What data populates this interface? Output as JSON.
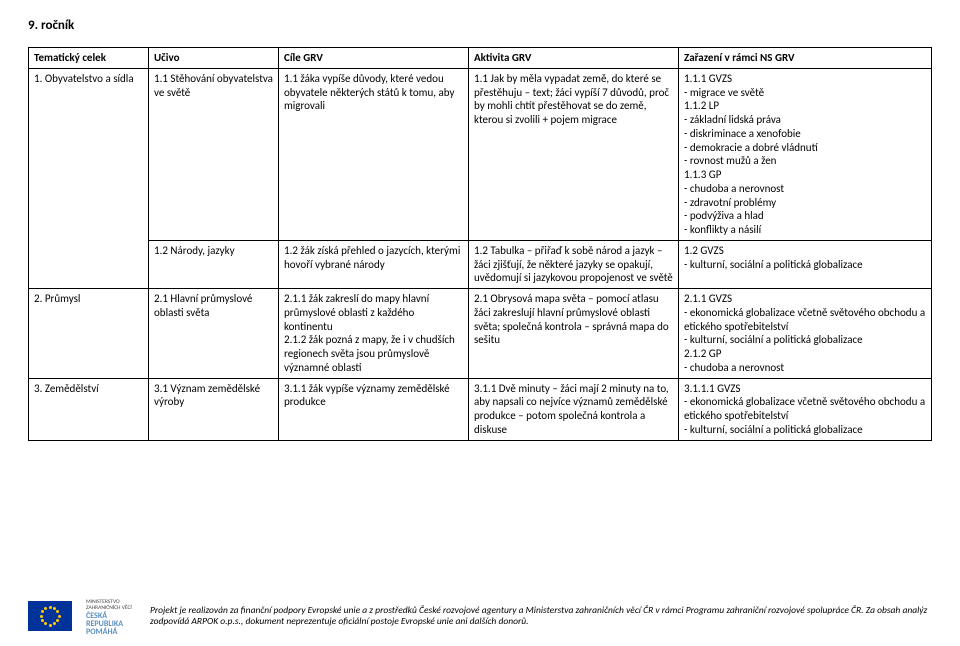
{
  "heading": "9. ročník",
  "columns": [
    "Tematický celek",
    "Učivo",
    "Cíle GRV",
    "Aktivita GRV",
    "Zařazení v rámci NS GRV"
  ],
  "rows": [
    {
      "c1": "1. Obyvatelstvo a sídla",
      "c2": "1.1 Stěhování obyvatelstva ve světě",
      "c3": "1.1 žáka vypíše důvody, které vedou obyvatele některých států k tomu, aby migrovali",
      "c4": "1.1 Jak by měla vypadat země, do které se přestěhuju – text; žáci vypíší 7 důvodů, proč by mohli chtít přestěhovat se do země, kterou si zvolili + pojem migrace",
      "c5": "1.1.1 GVZS\n- migrace ve světě\n1.1.2 LP\n- základní lidská práva\n- diskriminace a xenofobie\n- demokracie a dobré vládnutí\n- rovnost mužů a žen\n1.1.3 GP\n- chudoba a nerovnost\n- zdravotní problémy\n- podvýživa a hlad\n- konflikty a násilí"
    },
    {
      "c1": "",
      "c2": "1.2 Národy, jazyky",
      "c3": "1.2 žák získá přehled o jazycích, kterými hovoří vybrané národy",
      "c4": "1.2 Tabulka – přiřaď k sobě národ a jazyk – žáci zjišťují, že některé jazyky se opakují, uvědomují si jazykovou propojenost ve světě",
      "c5": "1.2 GVZS\n- kulturní, sociální a politická globalizace"
    },
    {
      "c1": "2. Průmysl",
      "c2": "2.1 Hlavní průmyslové oblasti světa",
      "c3": "2.1.1 žák zakreslí do mapy hlavní průmyslové oblasti z každého kontinentu\n2.1.2 žák pozná z mapy, že i v chudších regionech světa jsou průmyslově významné oblasti",
      "c4": "2.1 Obrysová mapa světa – pomocí atlasu žáci zakreslují hlavní průmyslové oblasti světa; společná kontrola – správná mapa do sešitu",
      "c5": "2.1.1 GVZS\n- ekonomická globalizace včetně světového obchodu a etického spotřebitelství\n- kulturní, sociální a politická globalizace\n2.1.2 GP\n- chudoba a nerovnost"
    },
    {
      "c1": "3. Zemědělství",
      "c2": "3.1 Význam zemědělské výroby",
      "c3": "3.1.1 žák vypíše významy zemědělské produkce",
      "c4": "3.1.1 Dvě minuty – žáci mají 2 minuty na to, aby napsali co nejvíce významů zemědělské produkce – potom společná kontrola a diskuse",
      "c5": "3.1.1.1 GVZS\n- ekonomická globalizace včetně světového obchodu a etického spotřebitelství\n- kulturní, sociální a politická globalizace"
    }
  ],
  "footer": "Projekt je realizován za finanční podpory Evropské unie a z prostředků České rozvojové agentury a Ministerstva zahraničních věcí ČR v rámci Programu zahraniční rozvojové spolupráce ČR. Za obsah analýz zodpovídá ARPOK o.p.s., dokument neprezentuje oficiální postoje Evropské unie ani dalších donorů.",
  "mzv": {
    "line1": "MINISTERSTVO ZAHRANIČNÍCH VĚCÍ",
    "line2": "ČESKÁ REPUBLIKA",
    "line3": "POMÁHÁ"
  },
  "style": {
    "body_font_size": 11,
    "heading_font_size": 13,
    "border_color": "#000000",
    "eu_blue": "#003399",
    "eu_gold": "#ffcc00"
  }
}
